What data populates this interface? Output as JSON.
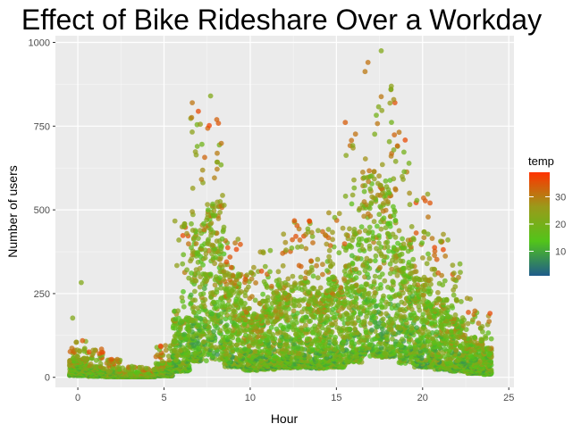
{
  "chart_data": {
    "type": "scatter",
    "title": "Effect of Bike Rideshare Over a Workday",
    "xlabel": "Hour",
    "ylabel": "Number of users",
    "xlim": [
      -1.3,
      25.3
    ],
    "ylim": [
      -30,
      1020
    ],
    "x_ticks": [
      0,
      5,
      10,
      15,
      20,
      25
    ],
    "y_ticks": [
      0,
      250,
      500,
      750,
      1000
    ],
    "x_tick_labels": [
      "0",
      "5",
      "10",
      "15",
      "20",
      "25"
    ],
    "y_tick_labels": [
      "0",
      "250",
      "500",
      "750",
      "1000"
    ],
    "grid": true,
    "color_variable": "temp",
    "legend": {
      "title": "temp",
      "position": "right",
      "range": [
        1,
        39
      ],
      "ticks": [
        10,
        20,
        30
      ],
      "tick_labels": [
        "10",
        "20",
        "30"
      ],
      "colors": [
        "#1F5C8B",
        "#52C41A",
        "#9A9A1A",
        "#FF3300"
      ]
    },
    "hourly_profile": [
      {
        "hour": 0,
        "typical": 35,
        "peak": 110
      },
      {
        "hour": 1,
        "typical": 22,
        "peak": 85
      },
      {
        "hour": 2,
        "typical": 12,
        "peak": 55
      },
      {
        "hour": 3,
        "typical": 7,
        "peak": 35
      },
      {
        "hour": 4,
        "typical": 7,
        "peak": 30
      },
      {
        "hour": 5,
        "typical": 30,
        "peak": 95
      },
      {
        "hour": 6,
        "typical": 120,
        "peak": 480
      },
      {
        "hour": 7,
        "typical": 320,
        "peak": 840
      },
      {
        "hour": 8,
        "typical": 350,
        "peak": 800
      },
      {
        "hour": 9,
        "typical": 210,
        "peak": 420
      },
      {
        "hour": 10,
        "typical": 140,
        "peak": 330
      },
      {
        "hour": 11,
        "typical": 160,
        "peak": 380
      },
      {
        "hour": 12,
        "typical": 190,
        "peak": 440
      },
      {
        "hour": 13,
        "typical": 190,
        "peak": 470
      },
      {
        "hour": 14,
        "typical": 180,
        "peak": 440
      },
      {
        "hour": 15,
        "typical": 200,
        "peak": 500
      },
      {
        "hour": 16,
        "typical": 300,
        "peak": 850
      },
      {
        "hour": 17,
        "typical": 420,
        "peak": 975
      },
      {
        "hour": 18,
        "typical": 400,
        "peak": 900
      },
      {
        "hour": 19,
        "typical": 280,
        "peak": 750
      },
      {
        "hour": 20,
        "typical": 200,
        "peak": 560
      },
      {
        "hour": 21,
        "typical": 160,
        "peak": 430
      },
      {
        "hour": 22,
        "typical": 120,
        "peak": 340
      },
      {
        "hour": 23,
        "typical": 80,
        "peak": 240
      },
      {
        "hour": 24,
        "typical": 60,
        "peak": 200
      }
    ],
    "notable_points": [
      {
        "x": 0.2,
        "y": 283
      },
      {
        "x": -0.3,
        "y": 177
      },
      {
        "x": 17.6,
        "y": 975
      },
      {
        "x": 7.7,
        "y": 840
      }
    ],
    "points_per_hour": 220,
    "point_opacity": 0.75
  }
}
